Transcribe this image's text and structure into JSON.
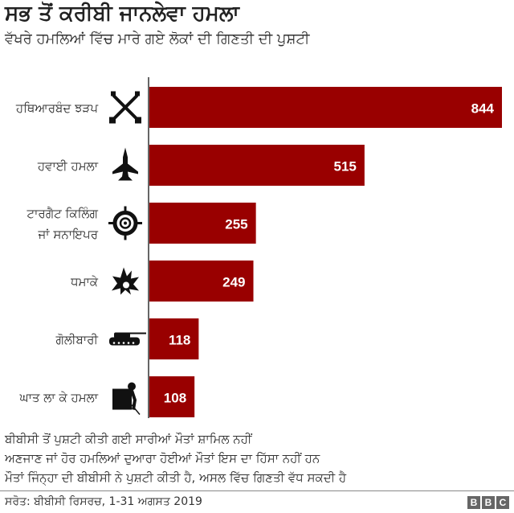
{
  "header": {
    "title": "ਸਭ ਤੋਂ ਕਰੀਬੀ ਜਾਨਲੇਵਾ ਹਮਲਾ",
    "subtitle": "ਵੱਖਰੇ ਹਮਲਿਆਂ ਵਿੱਚ ਮਾਰੇ ਗਏ ਲੋਕਾਂ ਦੀ ਗਿਣਤੀ ਦੀ ਪੁਸ਼ਟੀ"
  },
  "chart_data": {
    "type": "bar",
    "orientation": "horizontal",
    "title": "ਸਭ ਤੋਂ ਕਰੀਬੀ ਜਾਨਲੇਵਾ ਹਮਲਾ",
    "categories": [
      [
        "ਹਥਿਆਰਬੰਦ ਝੜਪ"
      ],
      [
        "ਹਵਾਈ ਹਮਲਾ"
      ],
      [
        "ਟਾਰਗੈਟ ਕਿਲਿੰਗ",
        "ਜਾਂ ਸਨਾਇਪਰ"
      ],
      [
        "ਧਮਾਕੇ"
      ],
      [
        "ਗੋਲੀਬਾਰੀ"
      ],
      [
        "ਘਾਤ ਲਾ ਕੇ ਹਮਲਾ"
      ]
    ],
    "icons": [
      "crossed-rifles-icon",
      "fighter-jet-icon",
      "crosshair-icon",
      "explosion-icon",
      "tank-icon",
      "ambush-icon"
    ],
    "values": [
      844,
      515,
      255,
      249,
      118,
      108
    ],
    "xlim": [
      0,
      844
    ],
    "bar_color": "#990000",
    "label_color": "#ffffff",
    "grid": false
  },
  "notes": [
    "ਬੀਬੀਸੀ ਤੋਂ ਪੁਸ਼ਟੀ ਕੀਤੀ ਗਈ ਸਾਰੀਆਂ ਮੌਤਾਂ ਸ਼ਾਮਿਲ ਨਹੀਂ",
    "ਅਣਜਾਣ ਜਾਂ ਹੋਰ ਹਮਲਿਆਂ ਦੁਆਰਾ ਹੋਈਆਂ ਮੌਤਾਂ ਇਸ ਦਾ ਹਿੱਸਾ ਨਹੀਂ ਹਨ",
    "ਮੌਤਾਂ ਜਿੰਨ੍ਹਾ ਦੀ ਬੀਬੀਸੀ ਨੇ ਪੁਸ਼ਟੀ ਕੀਤੀ ਹੈ, ਅਸਲ ਵਿੱਚ ਗਿਣਤੀ ਵੱਧ ਸਕਦੀ ਹੈ"
  ],
  "footer": {
    "source": "ਸਰੋਤ: ਬੀਬੀਸੀ ਰਿਸਰਚ, 1-31 ਅਗਸਤ 2019",
    "logo": [
      "B",
      "B",
      "C"
    ]
  }
}
